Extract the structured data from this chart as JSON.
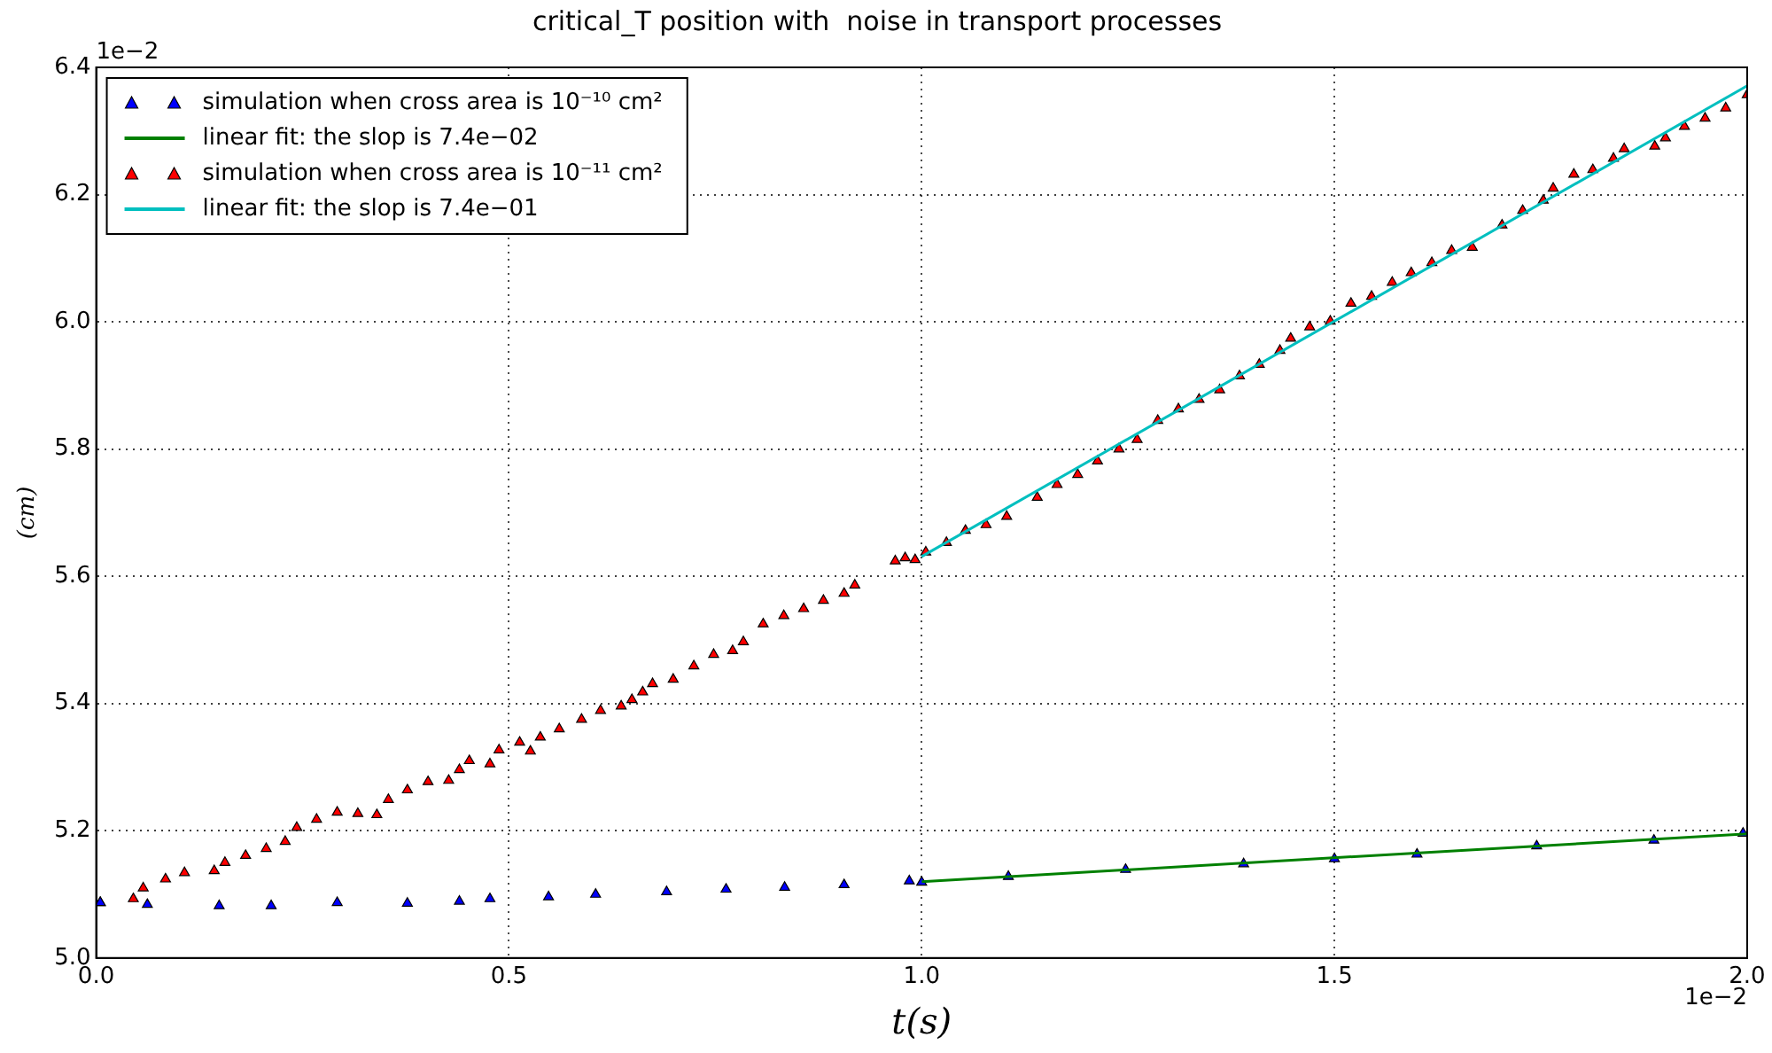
{
  "chart_data": {
    "type": "scatter",
    "title": "critical_T position with  noise in transport processes",
    "xlabel": "t(s)",
    "ylabel": "(cm)",
    "annotations": [
      "1e−2",
      "1e−2"
    ],
    "xlim": [
      0,
      2
    ],
    "xticks": [
      {
        "value": 0,
        "label": "0.0"
      },
      0.5,
      {
        "value": 1,
        "label": "1.0"
      },
      1.5,
      {
        "value": 2,
        "label": "2.0"
      }
    ],
    "ylim": [
      5,
      6.4
    ],
    "yticks": [
      {
        "value": 5,
        "label": "5.0"
      },
      5.2,
      5.4,
      5.6,
      5.8,
      {
        "value": 6,
        "label": "6.0"
      },
      6.2,
      6.4
    ],
    "grid": true,
    "legend": "top left",
    "series": [
      {
        "name": "simulation when cross area is 10⁻¹⁰ cm²",
        "marker": "triangle",
        "color": "#0000ff",
        "x": [
          0.005,
          0.062,
          0.149,
          0.212,
          0.292,
          0.377,
          0.44,
          0.477,
          0.548,
          0.605,
          0.691,
          0.763,
          0.834,
          0.906,
          0.985,
          1.0,
          1.105,
          1.247,
          1.39,
          1.5,
          1.6,
          1.745,
          1.887,
          1.995
        ],
        "values": [
          5.087,
          5.084,
          5.082,
          5.082,
          5.087,
          5.086,
          5.089,
          5.093,
          5.096,
          5.1,
          5.104,
          5.108,
          5.111,
          5.115,
          5.121,
          5.119,
          5.128,
          5.139,
          5.148,
          5.156,
          5.163,
          5.176,
          5.185,
          5.196
        ]
      },
      {
        "name": "linear fit: the slop is 7.4e−02",
        "type": "line",
        "marker": "none",
        "color": "#008000",
        "x": [
          1,
          2
        ],
        "values": [
          5.12,
          5.195
        ]
      },
      {
        "name": "simulation when cross area is 10⁻¹¹ cm²",
        "marker": "triangle",
        "color": "#ff0000",
        "x": [
          0.005,
          0.045,
          0.057,
          0.084,
          0.107,
          0.143,
          0.156,
          0.181,
          0.206,
          0.229,
          0.243,
          0.267,
          0.292,
          0.317,
          0.34,
          0.354,
          0.377,
          0.402,
          0.427,
          0.44,
          0.452,
          0.477,
          0.488,
          0.513,
          0.526,
          0.538,
          0.561,
          0.588,
          0.611,
          0.636,
          0.649,
          0.662,
          0.674,
          0.699,
          0.724,
          0.748,
          0.771,
          0.784,
          0.808,
          0.833,
          0.857,
          0.881,
          0.906,
          0.919,
          0.968,
          0.98,
          0.992,
          1.005,
          1.03,
          1.053,
          1.078,
          1.103,
          1.14,
          1.164,
          1.189,
          1.213,
          1.239,
          1.261,
          1.286,
          1.311,
          1.336,
          1.361,
          1.385,
          1.409,
          1.434,
          1.447,
          1.47,
          1.495,
          1.52,
          1.545,
          1.57,
          1.593,
          1.618,
          1.642,
          1.667,
          1.703,
          1.728,
          1.753,
          1.765,
          1.79,
          1.813,
          1.838,
          1.851,
          1.888,
          1.901,
          1.924,
          1.949,
          1.974,
          2.0
        ],
        "values": [
          5.087,
          5.093,
          5.11,
          5.124,
          5.134,
          5.137,
          5.15,
          5.161,
          5.172,
          5.183,
          5.205,
          5.218,
          5.229,
          5.227,
          5.225,
          5.249,
          5.264,
          5.277,
          5.279,
          5.296,
          5.31,
          5.305,
          5.327,
          5.339,
          5.325,
          5.347,
          5.36,
          5.375,
          5.389,
          5.396,
          5.406,
          5.418,
          5.431,
          5.438,
          5.459,
          5.477,
          5.483,
          5.497,
          5.525,
          5.538,
          5.549,
          5.562,
          5.573,
          5.586,
          5.624,
          5.629,
          5.626,
          5.638,
          5.653,
          5.672,
          5.681,
          5.694,
          5.724,
          5.744,
          5.76,
          5.781,
          5.8,
          5.815,
          5.845,
          5.863,
          5.878,
          5.893,
          5.915,
          5.933,
          5.955,
          5.974,
          5.992,
          6.001,
          6.029,
          6.04,
          6.062,
          6.077,
          6.093,
          6.112,
          6.117,
          6.152,
          6.175,
          6.191,
          6.21,
          6.232,
          6.239,
          6.257,
          6.272,
          6.276,
          6.289,
          6.307,
          6.32,
          6.336,
          6.357
        ]
      },
      {
        "name": "linear fit: the slop is 7.4e−01",
        "type": "line",
        "marker": "none",
        "color": "#00bfbf",
        "x": [
          1,
          2
        ],
        "values": [
          5.631,
          6.371
        ]
      }
    ]
  }
}
